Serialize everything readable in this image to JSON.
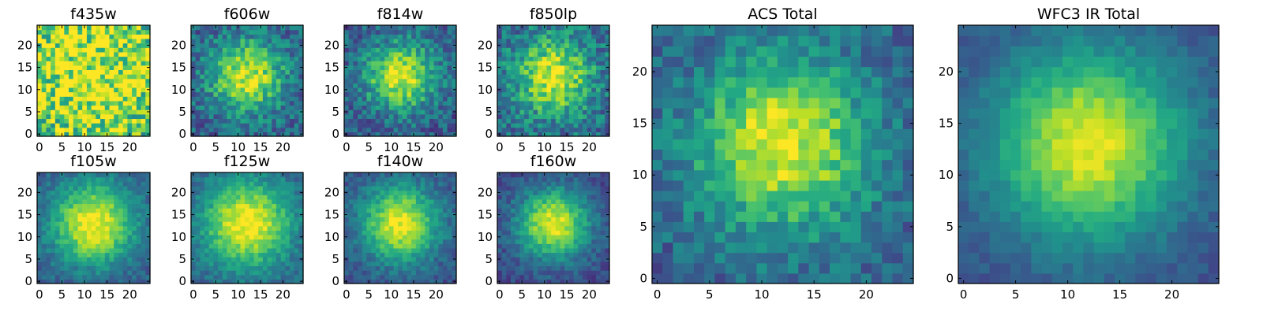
{
  "figure": {
    "panels": [
      {
        "id": "f435w",
        "title": "f435w",
        "kind": "small",
        "peak": 0.35,
        "noise": 0.34,
        "sigma": 12,
        "floor": 0.62,
        "seed": 11
      },
      {
        "id": "f606w",
        "title": "f606w",
        "kind": "small",
        "peak": 0.62,
        "noise": 0.18,
        "sigma": 6.0,
        "floor": 0.3,
        "seed": 22
      },
      {
        "id": "f814w",
        "title": "f814w",
        "kind": "small",
        "peak": 0.66,
        "noise": 0.18,
        "sigma": 5.5,
        "floor": 0.28,
        "seed": 33
      },
      {
        "id": "f850lp",
        "title": "f850lp",
        "kind": "small",
        "peak": 0.6,
        "noise": 0.2,
        "sigma": 6.0,
        "floor": 0.34,
        "seed": 44
      },
      {
        "id": "f105w",
        "title": "f105w",
        "kind": "small",
        "peak": 0.72,
        "noise": 0.1,
        "sigma": 6.5,
        "floor": 0.28,
        "seed": 55
      },
      {
        "id": "f125w",
        "title": "f125w",
        "kind": "small",
        "peak": 0.7,
        "noise": 0.1,
        "sigma": 7.0,
        "floor": 0.3,
        "seed": 66
      },
      {
        "id": "f140w",
        "title": "f140w",
        "kind": "small",
        "peak": 0.72,
        "noise": 0.1,
        "sigma": 6.0,
        "floor": 0.25,
        "seed": 77
      },
      {
        "id": "f160w",
        "title": "f160w",
        "kind": "small",
        "peak": 0.74,
        "noise": 0.1,
        "sigma": 5.5,
        "floor": 0.22,
        "seed": 88
      },
      {
        "id": "acs-total",
        "title": "ACS Total",
        "kind": "large",
        "peak": 0.66,
        "noise": 0.14,
        "sigma": 6.0,
        "floor": 0.3,
        "seed": 99
      },
      {
        "id": "wfc3-ir-total",
        "title": "WFC3 IR Total",
        "kind": "large",
        "peak": 0.72,
        "noise": 0.06,
        "sigma": 6.5,
        "floor": 0.24,
        "seed": 123
      }
    ]
  },
  "chart_data": {
    "type": "heatmap",
    "grid_size": 25,
    "xlim": [
      0,
      24
    ],
    "ylim": [
      0,
      24
    ],
    "colormap": "viridis",
    "center": [
      12,
      13
    ],
    "small_ticks_x": [
      "0",
      "5",
      "10",
      "15",
      "20"
    ],
    "small_ticks_y": [
      "0",
      "5",
      "10",
      "15",
      "20"
    ],
    "large_ticks_x": [
      "0",
      "5",
      "10",
      "15",
      "20"
    ],
    "large_ticks_y": [
      "0",
      "5",
      "10",
      "15",
      "20"
    ],
    "grid": false
  }
}
